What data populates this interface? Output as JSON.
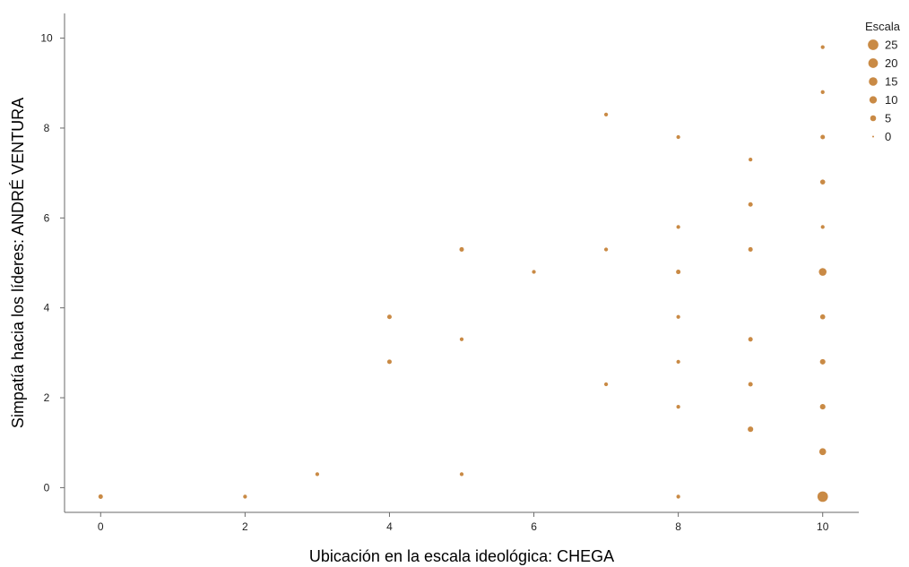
{
  "colors": {
    "point": "#c98a45",
    "axis": "#6a6a6a"
  },
  "chart_data": {
    "type": "scatter",
    "xlabel": "Ubicación en la escala ideológica: CHEGA",
    "ylabel": "Simpatía hacia los líderes: ANDRÉ VENTURA",
    "xlim": [
      -0.5,
      10.5
    ],
    "ylim": [
      -0.55,
      10.55
    ],
    "x_ticks": [
      0,
      2,
      4,
      6,
      8,
      10
    ],
    "y_ticks": [
      0,
      2,
      4,
      6,
      8,
      10
    ],
    "grid": false,
    "legend": {
      "title": "Escala",
      "placement": "top-right",
      "entries": [
        {
          "label": "25",
          "size": 25
        },
        {
          "label": "20",
          "size": 20
        },
        {
          "label": "15",
          "size": 15
        },
        {
          "label": "10",
          "size": 10
        },
        {
          "label": "5",
          "size": 5
        },
        {
          "label": "0",
          "size": 0
        }
      ]
    },
    "points": [
      {
        "x": 0,
        "y": -0.2,
        "size": 2
      },
      {
        "x": 2,
        "y": -0.2,
        "size": 1
      },
      {
        "x": 3,
        "y": 0.3,
        "size": 1
      },
      {
        "x": 4,
        "y": 2.8,
        "size": 2
      },
      {
        "x": 4,
        "y": 3.8,
        "size": 2
      },
      {
        "x": 5,
        "y": 0.3,
        "size": 1
      },
      {
        "x": 5,
        "y": 3.3,
        "size": 1
      },
      {
        "x": 5,
        "y": 5.3,
        "size": 2
      },
      {
        "x": 6,
        "y": 4.8,
        "size": 1
      },
      {
        "x": 7,
        "y": 2.3,
        "size": 1
      },
      {
        "x": 7,
        "y": 5.3,
        "size": 1
      },
      {
        "x": 7,
        "y": 8.3,
        "size": 1
      },
      {
        "x": 8,
        "y": -0.2,
        "size": 1
      },
      {
        "x": 8,
        "y": 1.8,
        "size": 1
      },
      {
        "x": 8,
        "y": 2.8,
        "size": 1
      },
      {
        "x": 8,
        "y": 3.8,
        "size": 1
      },
      {
        "x": 8,
        "y": 4.8,
        "size": 2
      },
      {
        "x": 8,
        "y": 5.8,
        "size": 1
      },
      {
        "x": 8,
        "y": 7.8,
        "size": 1
      },
      {
        "x": 9,
        "y": 1.3,
        "size": 4
      },
      {
        "x": 9,
        "y": 2.3,
        "size": 2
      },
      {
        "x": 9,
        "y": 3.3,
        "size": 2
      },
      {
        "x": 9,
        "y": 5.3,
        "size": 2
      },
      {
        "x": 9,
        "y": 6.3,
        "size": 2
      },
      {
        "x": 9,
        "y": 7.3,
        "size": 1
      },
      {
        "x": 10,
        "y": -0.2,
        "size": 25
      },
      {
        "x": 10,
        "y": 0.8,
        "size": 8
      },
      {
        "x": 10,
        "y": 1.8,
        "size": 4
      },
      {
        "x": 10,
        "y": 2.8,
        "size": 4
      },
      {
        "x": 10,
        "y": 3.8,
        "size": 3
      },
      {
        "x": 10,
        "y": 4.8,
        "size": 11
      },
      {
        "x": 10,
        "y": 5.8,
        "size": 1
      },
      {
        "x": 10,
        "y": 6.8,
        "size": 3
      },
      {
        "x": 10,
        "y": 7.8,
        "size": 2
      },
      {
        "x": 10,
        "y": 8.8,
        "size": 1
      },
      {
        "x": 10,
        "y": 9.8,
        "size": 1
      }
    ]
  }
}
